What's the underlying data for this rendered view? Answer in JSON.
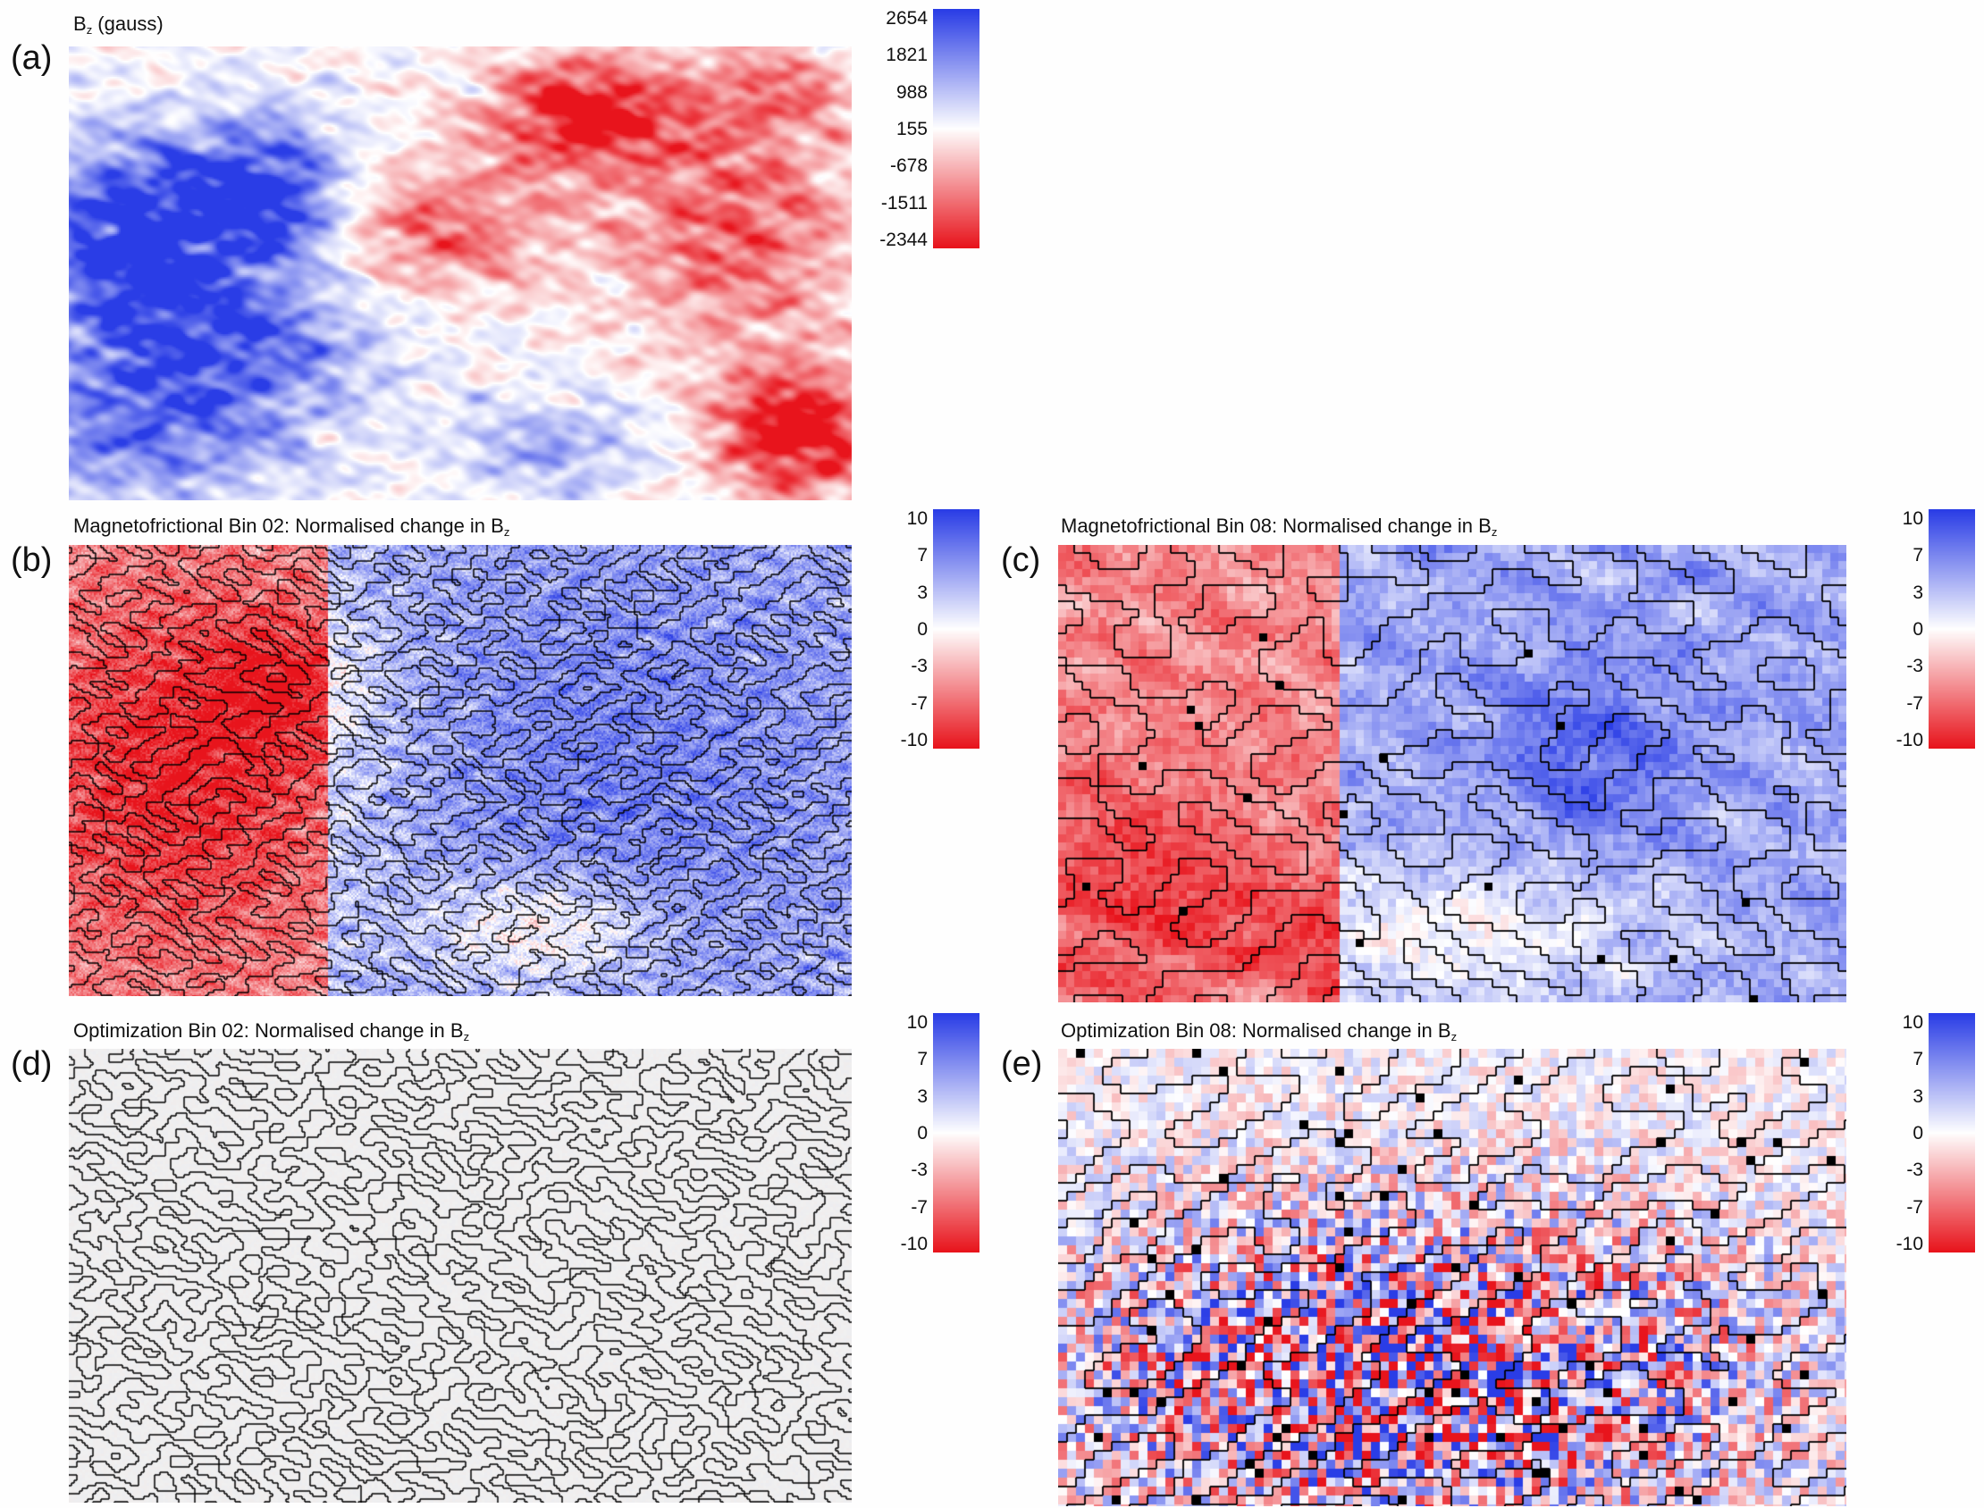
{
  "panels": {
    "a": {
      "letter": "(a)",
      "title_main": "B",
      "title_sub": "z",
      "title_rest": " (gauss)",
      "colorbar_ticks": [
        "2654",
        "1821",
        "988",
        "155",
        "-678",
        "-1511",
        "-2344"
      ]
    },
    "b": {
      "letter": "(b)",
      "title_main": "Magnetofrictional Bin 02: Normalised change in B",
      "title_sub": "z",
      "colorbar_ticks": [
        "10",
        "7",
        "3",
        "0",
        "-3",
        "-7",
        "-10"
      ]
    },
    "c": {
      "letter": "(c)",
      "title_main": "Magnetofrictional Bin 08: Normalised change in B",
      "title_sub": "z",
      "colorbar_ticks": [
        "10",
        "7",
        "3",
        "0",
        "-3",
        "-7",
        "-10"
      ]
    },
    "d": {
      "letter": "(d)",
      "title_main": "Optimization Bin 02: Normalised change in B",
      "title_sub": "z",
      "colorbar_ticks": [
        "10",
        "7",
        "3",
        "0",
        "-3",
        "-7",
        "-10"
      ]
    },
    "e": {
      "letter": "(e)",
      "title_main": "Optimization Bin 08: Normalised change in B",
      "title_sub": "z",
      "colorbar_ticks": [
        "10",
        "7",
        "3",
        "0",
        "-3",
        "-7",
        "-10"
      ]
    }
  },
  "colors": {
    "positive": "#2a3de6",
    "zero": "#ffffff",
    "negative": "#e8141c",
    "contour": "#000000"
  },
  "chart_data": [
    {
      "type": "heatmap",
      "panel": "a",
      "title": "Bz (gauss)",
      "colorbar_range": [
        -2344,
        2654
      ],
      "colorbar_ticks": [
        2654,
        1821,
        988,
        155,
        -678,
        -1511,
        -2344
      ]
    },
    {
      "type": "heatmap",
      "panel": "b",
      "title": "Magnetofrictional Bin 02: Normalised change in Bz",
      "colorbar_range": [
        -10,
        10
      ],
      "colorbar_ticks": [
        10,
        7,
        3,
        0,
        -3,
        -7,
        -10
      ],
      "contours": true
    },
    {
      "type": "heatmap",
      "panel": "c",
      "title": "Magnetofrictional Bin 08: Normalised change in Bz",
      "colorbar_range": [
        -10,
        10
      ],
      "colorbar_ticks": [
        10,
        7,
        3,
        0,
        -3,
        -7,
        -10
      ],
      "contours": true
    },
    {
      "type": "heatmap",
      "panel": "d",
      "title": "Optimization Bin 02: Normalised change in Bz",
      "colorbar_range": [
        -10,
        10
      ],
      "colorbar_ticks": [
        10,
        7,
        3,
        0,
        -3,
        -7,
        -10
      ],
      "contours": true
    },
    {
      "type": "heatmap",
      "panel": "e",
      "title": "Optimization Bin 08: Normalised change in Bz",
      "colorbar_range": [
        -10,
        10
      ],
      "colorbar_ticks": [
        10,
        7,
        3,
        0,
        -3,
        -7,
        -10
      ],
      "contours": true
    }
  ]
}
